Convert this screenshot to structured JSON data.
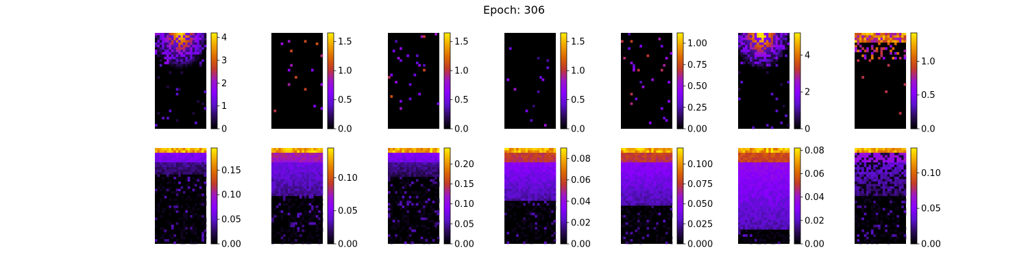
{
  "figure": {
    "title": "Epoch: 306"
  },
  "colormap": {
    "name": "gnuplot",
    "stops": [
      "#000000",
      "#2a0a55",
      "#5b10cc",
      "#8a00ff",
      "#9c16c8",
      "#c23a2a",
      "#dd6a00",
      "#f2a800",
      "#ffef00"
    ]
  },
  "chart_data": [
    {
      "type": "heatmap",
      "row": 0,
      "col": 0,
      "vmin": 0,
      "vmax": 4.2,
      "ticks": [
        "0",
        "1",
        "2",
        "3",
        "4"
      ],
      "tick_values": [
        0,
        1,
        2,
        3,
        4
      ],
      "pattern": "hotspot",
      "hotspot_col": 0.5,
      "strength": 1.0
    },
    {
      "type": "heatmap",
      "row": 0,
      "col": 1,
      "vmin": 0,
      "vmax": 1.65,
      "ticks": [
        "0.0",
        "0.5",
        "1.0",
        "1.5"
      ],
      "tick_values": [
        0,
        0.5,
        1.0,
        1.5
      ],
      "pattern": "sparse",
      "strength": 0.5
    },
    {
      "type": "heatmap",
      "row": 0,
      "col": 2,
      "vmin": 0,
      "vmax": 1.65,
      "ticks": [
        "0.0",
        "0.5",
        "1.0",
        "1.5"
      ],
      "tick_values": [
        0,
        0.5,
        1.0,
        1.5
      ],
      "pattern": "sparse",
      "strength": 0.5
    },
    {
      "type": "heatmap",
      "row": 0,
      "col": 3,
      "vmin": 0,
      "vmax": 1.65,
      "ticks": [
        "0.0",
        "0.5",
        "1.0",
        "1.5"
      ],
      "tick_values": [
        0,
        0.5,
        1.0,
        1.5
      ],
      "pattern": "sparse",
      "strength": 0.35
    },
    {
      "type": "heatmap",
      "row": 0,
      "col": 4,
      "vmin": 0,
      "vmax": 1.12,
      "ticks": [
        "0.00",
        "0.25",
        "0.50",
        "0.75",
        "1.00"
      ],
      "tick_values": [
        0,
        0.25,
        0.5,
        0.75,
        1.0
      ],
      "pattern": "sparse",
      "strength": 0.45
    },
    {
      "type": "heatmap",
      "row": 0,
      "col": 5,
      "vmin": 0,
      "vmax": 5.2,
      "ticks": [
        "0",
        "2",
        "4"
      ],
      "tick_values": [
        0,
        2,
        4
      ],
      "pattern": "hotspot",
      "hotspot_col": 0.45,
      "strength": 1.1
    },
    {
      "type": "heatmap",
      "row": 0,
      "col": 6,
      "vmin": 0,
      "vmax": 1.42,
      "ticks": [
        "0.0",
        "0.5",
        "1.0"
      ],
      "tick_values": [
        0,
        0.5,
        1.0
      ],
      "pattern": "top-band-sparse",
      "strength": 0.8
    },
    {
      "type": "heatmap",
      "row": 1,
      "col": 0,
      "vmin": 0,
      "vmax": 0.195,
      "ticks": [
        "0.00",
        "0.05",
        "0.10",
        "0.15"
      ],
      "tick_values": [
        0,
        0.05,
        0.1,
        0.15
      ],
      "pattern": "gradient",
      "depth": 0.28,
      "strength": 0.55
    },
    {
      "type": "heatmap",
      "row": 1,
      "col": 1,
      "vmin": 0,
      "vmax": 0.145,
      "ticks": [
        "0.00",
        "0.05",
        "0.10"
      ],
      "tick_values": [
        0,
        0.05,
        0.1
      ],
      "pattern": "gradient",
      "depth": 0.5,
      "strength": 0.8
    },
    {
      "type": "heatmap",
      "row": 1,
      "col": 2,
      "vmin": 0,
      "vmax": 0.24,
      "ticks": [
        "0.00",
        "0.05",
        "0.10",
        "0.15",
        "0.20"
      ],
      "tick_values": [
        0,
        0.05,
        0.1,
        0.15,
        0.2
      ],
      "pattern": "gradient",
      "depth": 0.3,
      "strength": 0.55
    },
    {
      "type": "heatmap",
      "row": 1,
      "col": 3,
      "vmin": 0,
      "vmax": 0.09,
      "ticks": [
        "0.00",
        "0.02",
        "0.04",
        "0.06",
        "0.08"
      ],
      "tick_values": [
        0,
        0.02,
        0.04,
        0.06,
        0.08
      ],
      "pattern": "gradient",
      "depth": 0.55,
      "strength": 0.95
    },
    {
      "type": "heatmap",
      "row": 1,
      "col": 4,
      "vmin": 0,
      "vmax": 0.12,
      "ticks": [
        "0.000",
        "0.025",
        "0.050",
        "0.075",
        "0.100"
      ],
      "tick_values": [
        0,
        0.025,
        0.05,
        0.075,
        0.1
      ],
      "pattern": "gradient",
      "depth": 0.6,
      "strength": 0.95
    },
    {
      "type": "heatmap",
      "row": 1,
      "col": 5,
      "vmin": 0,
      "vmax": 0.082,
      "ticks": [
        "0.00",
        "0.02",
        "0.04",
        "0.06",
        "0.08"
      ],
      "tick_values": [
        0,
        0.02,
        0.04,
        0.06,
        0.08
      ],
      "pattern": "gradient",
      "depth": 0.85,
      "strength": 1.0
    },
    {
      "type": "heatmap",
      "row": 1,
      "col": 6,
      "vmin": 0,
      "vmax": 0.135,
      "ticks": [
        "0.00",
        "0.05",
        "0.10"
      ],
      "tick_values": [
        0,
        0.05,
        0.1
      ],
      "pattern": "gradient-patchy",
      "depth": 0.5,
      "strength": 0.7
    }
  ]
}
